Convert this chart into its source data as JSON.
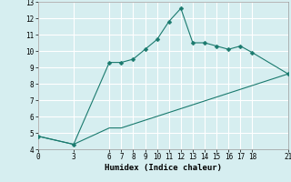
{
  "xlabel": "Humidex (Indice chaleur)",
  "bg_color": "#d6eef0",
  "grid_color": "#ffffff",
  "line_color": "#1a7a6e",
  "upper_x": [
    0,
    3,
    6,
    7,
    8,
    9,
    10,
    11,
    12,
    13,
    14,
    15,
    16,
    17,
    18,
    21
  ],
  "upper_y": [
    4.8,
    4.3,
    9.3,
    9.3,
    9.5,
    10.1,
    10.7,
    11.8,
    12.6,
    10.5,
    10.5,
    10.3,
    10.1,
    10.3,
    9.9,
    8.6
  ],
  "lower_x": [
    0,
    3,
    6,
    7,
    21
  ],
  "lower_y": [
    4.8,
    4.3,
    5.3,
    5.3,
    8.6
  ],
  "xlim": [
    0,
    21
  ],
  "ylim": [
    4,
    13
  ],
  "xticks": [
    0,
    3,
    6,
    7,
    8,
    9,
    10,
    11,
    12,
    13,
    14,
    15,
    16,
    17,
    18,
    21
  ],
  "yticks": [
    4,
    5,
    6,
    7,
    8,
    9,
    10,
    11,
    12,
    13
  ],
  "xlabel_fontsize": 6.5,
  "tick_fontsize": 5.5
}
